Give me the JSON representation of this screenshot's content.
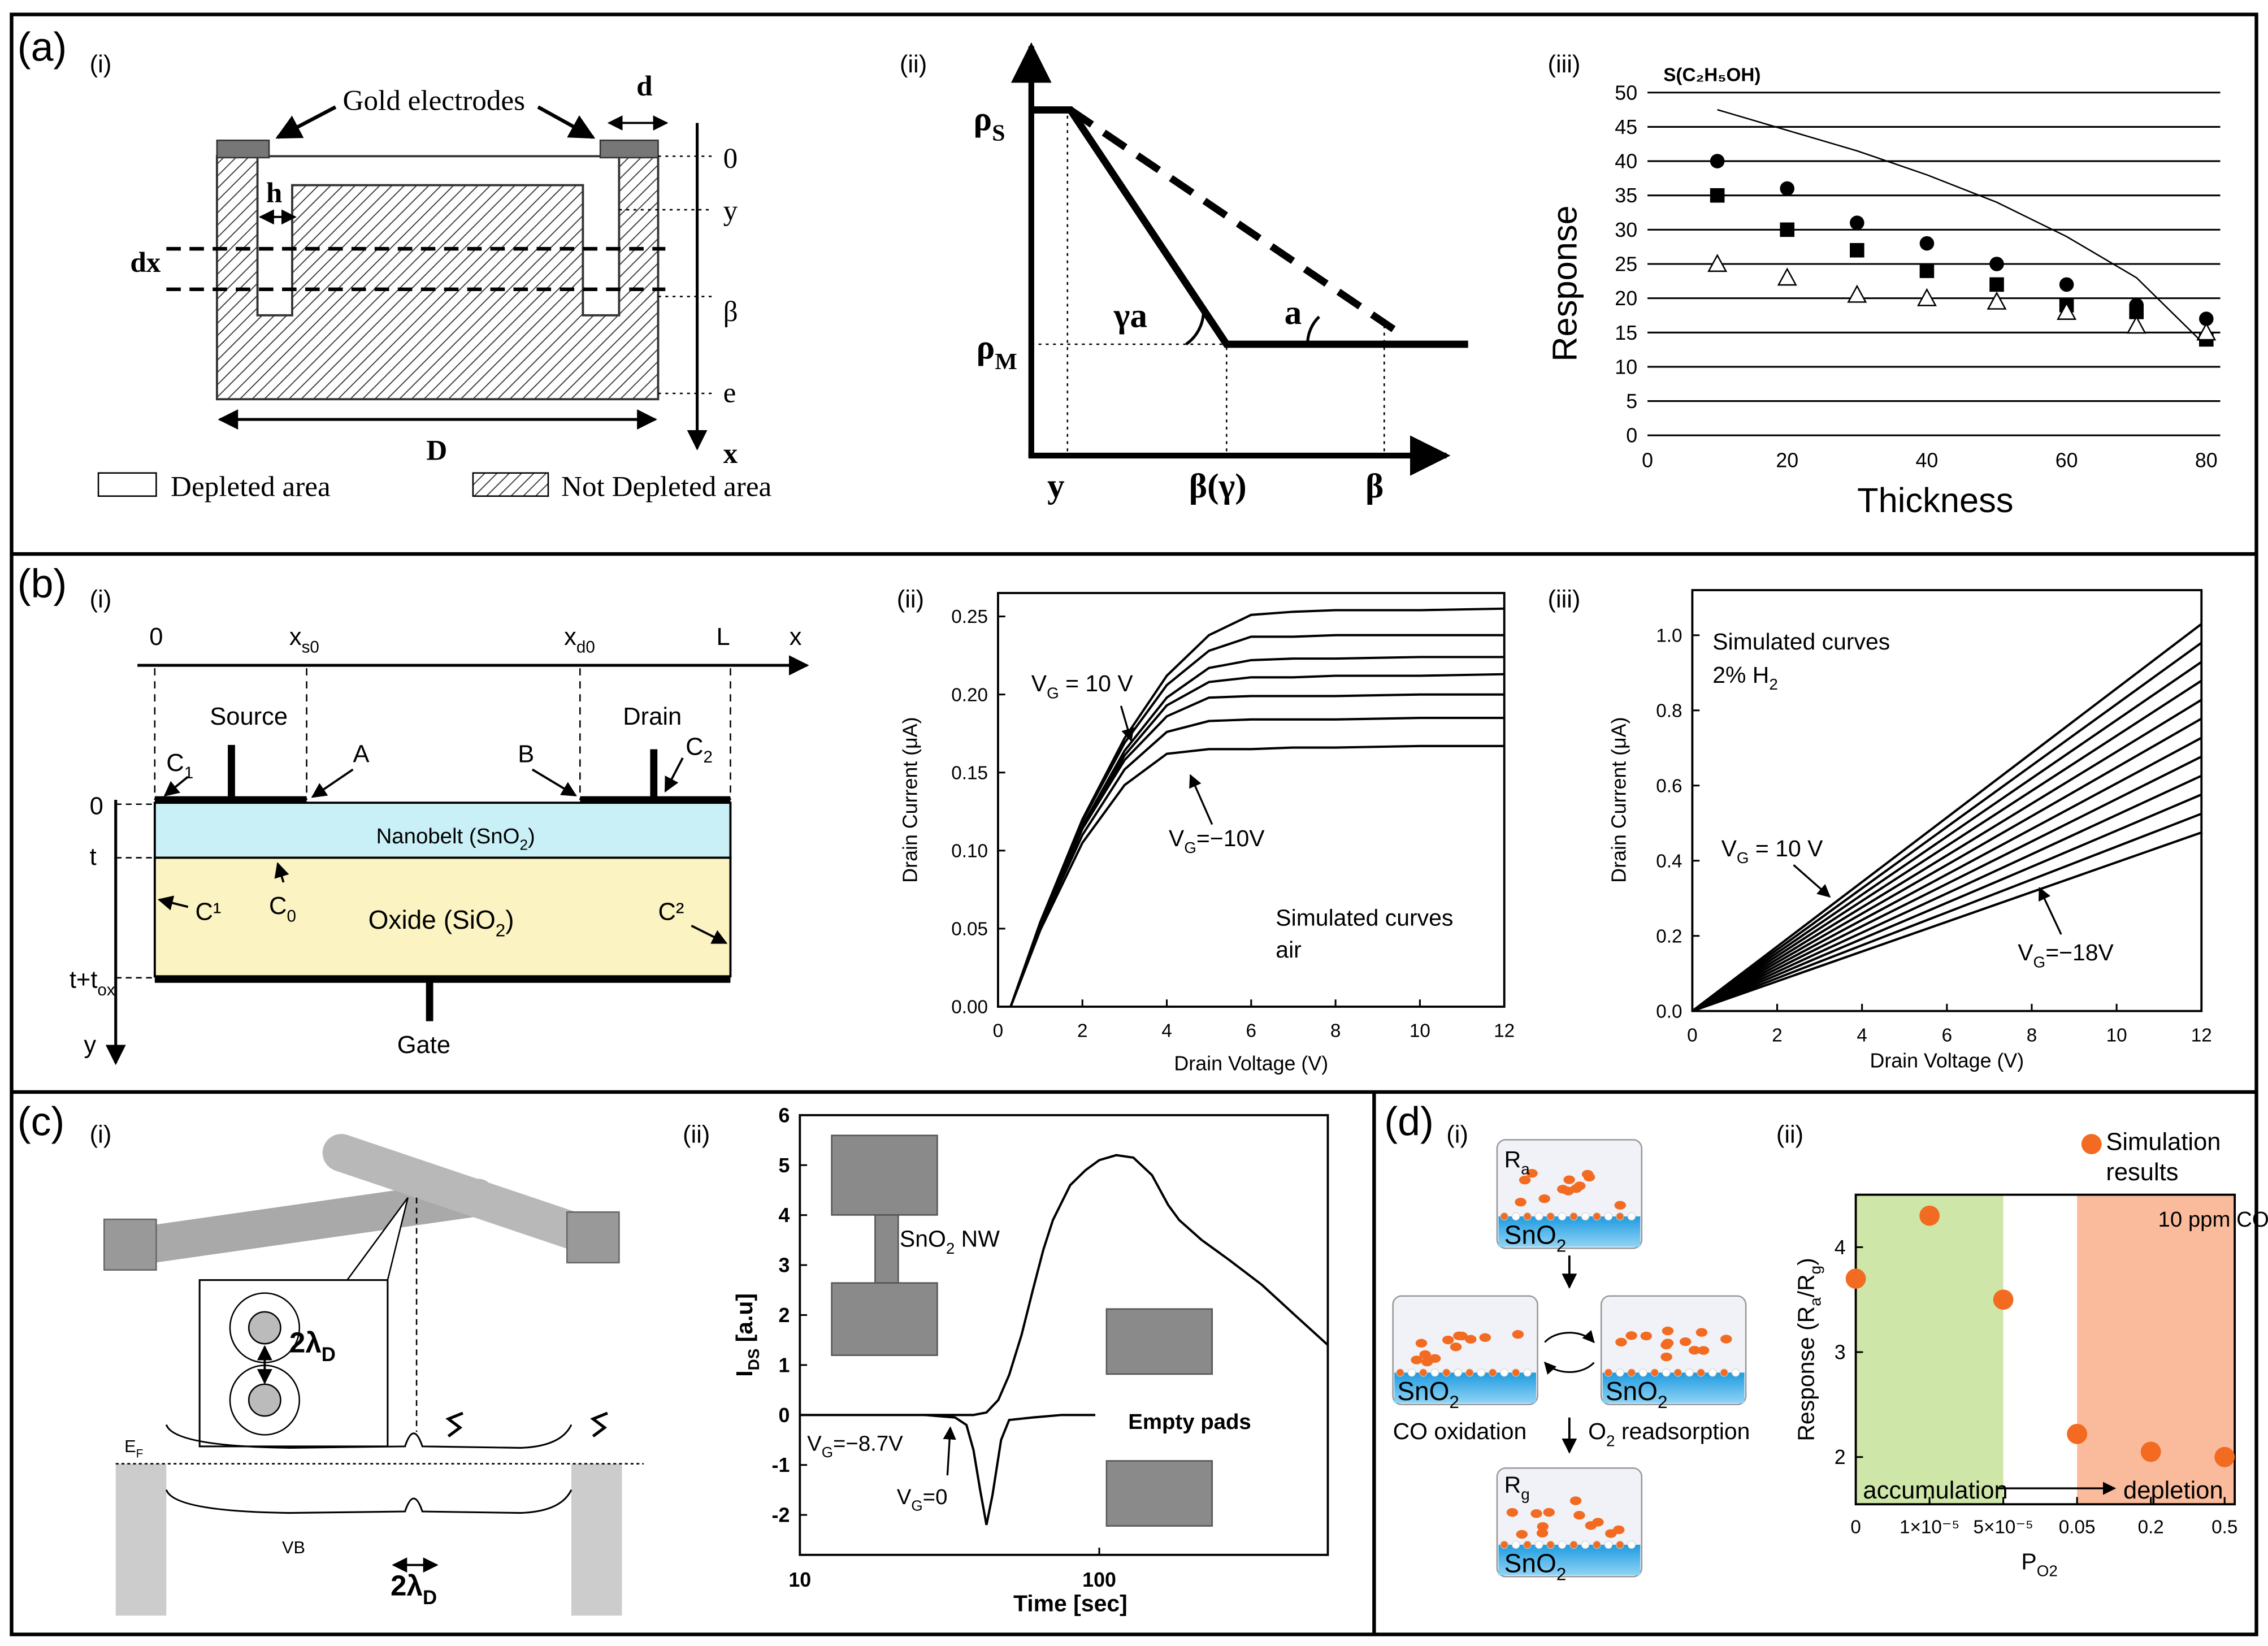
{
  "labels": [
    "(a)",
    "(b)",
    "(c)",
    "(d)"
  ],
  "sublabels": [
    "(i)",
    "(ii)",
    "(iii)",
    "(i)",
    "(ii)",
    "(iii)",
    "(i)",
    "(ii)",
    "(i)",
    "(ii)"
  ],
  "diagrams": {
    "a_i": [
      "Gold electrodes",
      "d",
      "0",
      "y",
      "h",
      "dx",
      "β",
      "e",
      "D",
      "x",
      "Depleted  area",
      "Not Depleted area"
    ],
    "a_ii": [
      [
        "ρ",
        "S"
      ],
      [
        "ρ",
        "M"
      ],
      "γa",
      "a",
      "y",
      "β(γ)",
      "β"
    ],
    "b_i": [
      "0",
      [
        "x",
        "s0"
      ],
      [
        "x",
        "d0"
      ],
      "L",
      "x",
      "Source",
      "Drain",
      [
        "C",
        "1"
      ],
      "A",
      "B",
      [
        "C",
        "2"
      ],
      "0",
      "t",
      [
        "t+t",
        "ox"
      ],
      [
        "Nanobelt (SnO",
        "2",
        ")"
      ],
      [
        "C",
        "0"
      ],
      "C¹",
      [
        "Oxide (SiO",
        "2",
        ")"
      ],
      "C²",
      "Gate",
      "y"
    ],
    "c_i": [
      [
        "2λ",
        "D"
      ],
      [
        "E",
        "F"
      ],
      "VB",
      [
        "2λ",
        "D"
      ]
    ],
    "d_i": [
      [
        "R",
        "a"
      ],
      [
        "SnO",
        "2"
      ],
      [
        "SnO",
        "2"
      ],
      [
        "SnO",
        "2"
      ],
      "CO oxidation",
      [
        "O",
        "2",
        " readsorption"
      ],
      [
        "R",
        "g"
      ],
      [
        "SnO",
        "2"
      ]
    ]
  },
  "chart_data": [
    {
      "type": "scatter",
      "title": "S(C₂H₅OH)",
      "xlabel": "Thickness",
      "ylabel": "Response",
      "xlim": [
        0,
        82
      ],
      "ylim": [
        0,
        50
      ],
      "xticks": [
        0,
        20,
        40,
        60,
        80
      ],
      "yticks": [
        0,
        5,
        10,
        15,
        20,
        25,
        30,
        35,
        40,
        45,
        50
      ],
      "grid": true,
      "frame": "none",
      "series": [
        {
          "marker": "circle",
          "color": "#000000",
          "x": [
            10,
            20,
            30,
            40,
            50,
            60,
            70,
            80
          ],
          "values": [
            40,
            36,
            31,
            28,
            25,
            22,
            19,
            17
          ]
        },
        {
          "marker": "square",
          "color": "#000000",
          "x": [
            10,
            20,
            30,
            40,
            50,
            60,
            70,
            80
          ],
          "values": [
            35,
            30,
            27,
            24,
            22,
            19,
            18,
            14
          ]
        },
        {
          "marker": "triangle-open",
          "color": "#000000",
          "x": [
            10,
            20,
            30,
            40,
            50,
            60,
            70,
            80
          ],
          "values": [
            25,
            23,
            20.5,
            20,
            19.5,
            18,
            16,
            15
          ]
        },
        {
          "marker": "none",
          "line": true,
          "color": "#000000",
          "x": [
            10,
            20,
            30,
            40,
            50,
            60,
            70,
            80
          ],
          "values": [
            47.5,
            44.5,
            41.5,
            38,
            34,
            29,
            23,
            13
          ]
        }
      ]
    },
    {
      "type": "line",
      "xlabel": "Drain Voltage (V)",
      "ylabel": "Drain Current (μA)",
      "xlim": [
        0,
        12
      ],
      "ylim": [
        0,
        0.265
      ],
      "xticks": [
        0,
        2,
        4,
        6,
        8,
        10,
        12
      ],
      "yticks": [
        {
          "value": 0,
          "label": "0.00"
        },
        0.05,
        {
          "value": 0.1,
          "label": "0.10"
        },
        0.15,
        {
          "value": 0.2,
          "label": "0.20"
        },
        0.25
      ],
      "frame": "box",
      "color": "#000000",
      "x": [
        0.3,
        1,
        2,
        3,
        4,
        5,
        6,
        7,
        8,
        10,
        12
      ],
      "series": [
        {
          "values": [
            0,
            0.049,
            0.105,
            0.142,
            0.162,
            0.165,
            0.165,
            0.166,
            0.166,
            0.167,
            0.167
          ]
        },
        {
          "values": [
            0,
            0.051,
            0.11,
            0.152,
            0.176,
            0.183,
            0.184,
            0.184,
            0.184,
            0.185,
            0.185
          ]
        },
        {
          "values": [
            0,
            0.052,
            0.114,
            0.158,
            0.186,
            0.198,
            0.199,
            0.199,
            0.199,
            0.2,
            0.2
          ]
        },
        {
          "values": [
            0,
            0.053,
            0.115,
            0.161,
            0.193,
            0.208,
            0.211,
            0.211,
            0.212,
            0.212,
            0.213
          ]
        },
        {
          "values": [
            0,
            0.053,
            0.116,
            0.164,
            0.198,
            0.217,
            0.222,
            0.223,
            0.223,
            0.224,
            0.224
          ]
        },
        {
          "values": [
            0,
            0.054,
            0.119,
            0.169,
            0.206,
            0.228,
            0.237,
            0.237,
            0.238,
            0.238,
            0.238
          ]
        },
        {
          "values": [
            0,
            0.054,
            0.12,
            0.172,
            0.212,
            0.238,
            0.251,
            0.253,
            0.254,
            0.254,
            0.255
          ]
        }
      ],
      "annotations": [
        [
          "V",
          "G",
          " = 10 V"
        ],
        [
          "V",
          "G",
          "=−10V"
        ],
        "Simulated curves",
        "air"
      ]
    },
    {
      "type": "line",
      "xlabel": "Drain Voltage (V)",
      "ylabel": "Drain Current (μA)",
      "xlim": [
        0,
        12
      ],
      "ylim": [
        0,
        1.12
      ],
      "xticks": [
        0,
        2,
        4,
        6,
        8,
        10,
        12
      ],
      "yticks": [
        {
          "value": 0,
          "label": "0.0"
        },
        0.2,
        0.4,
        0.6,
        0.8,
        {
          "value": 1,
          "label": "1.0"
        }
      ],
      "frame": "box",
      "color": "#000000",
      "x": [
        0,
        12
      ],
      "series": [
        {
          "values": [
            0,
            0.475
          ]
        },
        {
          "values": [
            0,
            0.525
          ]
        },
        {
          "values": [
            0,
            0.576
          ]
        },
        {
          "values": [
            0,
            0.626
          ]
        },
        {
          "values": [
            0,
            0.677
          ]
        },
        {
          "values": [
            0,
            0.727
          ]
        },
        {
          "values": [
            0,
            0.778
          ]
        },
        {
          "values": [
            0,
            0.828
          ]
        },
        {
          "values": [
            0,
            0.879
          ]
        },
        {
          "values": [
            0,
            0.929
          ]
        },
        {
          "values": [
            0,
            0.98
          ]
        },
        {
          "values": [
            0,
            1.03
          ]
        }
      ],
      "annotations": [
        "Simulated curves",
        [
          "2% H",
          "2"
        ],
        [
          "V",
          "G",
          " = 10 V"
        ],
        [
          "V",
          "G",
          "=−18V"
        ]
      ]
    },
    {
      "type": "line",
      "xlabel": "Time [sec]",
      "ylabel": [
        "I",
        "DS",
        " [a.u]"
      ],
      "xscale": "log",
      "xlim": [
        10,
        580
      ],
      "ylim": [
        -2.8,
        6
      ],
      "xticks": [
        10,
        100
      ],
      "yticks": [
        -2,
        -1,
        0,
        1,
        2,
        3,
        4,
        5,
        6
      ],
      "frame": "box",
      "color": "#000000",
      "series": [
        {
          "x": [
            10,
            20,
            30,
            38,
            42,
            46,
            50,
            55,
            60,
            65,
            70,
            80,
            90,
            100,
            114,
            130,
            150,
            170,
            185,
            220,
            272,
            350,
            450,
            580
          ],
          "values": [
            0,
            0,
            0,
            0,
            0.05,
            0.3,
            0.8,
            1.6,
            2.5,
            3.3,
            3.9,
            4.6,
            4.9,
            5.1,
            5.2,
            5.15,
            4.8,
            4.2,
            3.9,
            3.5,
            3.1,
            2.6,
            2.0,
            1.4
          ]
        },
        {
          "x": [
            26,
            33,
            36,
            38,
            40,
            42,
            44,
            47,
            50,
            60,
            75,
            97
          ],
          "values": [
            0,
            -0.05,
            -0.2,
            -0.7,
            -1.5,
            -2.2,
            -1.6,
            -0.5,
            -0.1,
            -0.05,
            0,
            0
          ]
        }
      ],
      "annotations": [
        [
          "SnO",
          "2",
          " NW"
        ],
        "Empty pads",
        [
          "V",
          "G",
          "=−8.7V"
        ],
        [
          "V",
          "G",
          "=0"
        ]
      ]
    },
    {
      "type": "scatter",
      "xlabel": [
        "P",
        "O2"
      ],
      "ylabel": [
        "Response (R",
        "a",
        "/R",
        "g",
        ")"
      ],
      "categories": [
        "0",
        "1×10⁻⁵",
        "5×10⁻⁵",
        "0.05",
        "0.2",
        "0.5"
      ],
      "ylim": [
        1.55,
        4.5
      ],
      "yticks": [
        2,
        3,
        4
      ],
      "frame": "box",
      "series": [
        {
          "name": "Simulation results",
          "color": "#f26b21",
          "marker": "circle",
          "values": [
            3.7,
            4.3,
            3.5,
            2.22,
            2.05,
            2.0
          ]
        }
      ],
      "annotations": [
        "10 ppm CO",
        "accumulation",
        "depletion"
      ]
    }
  ]
}
